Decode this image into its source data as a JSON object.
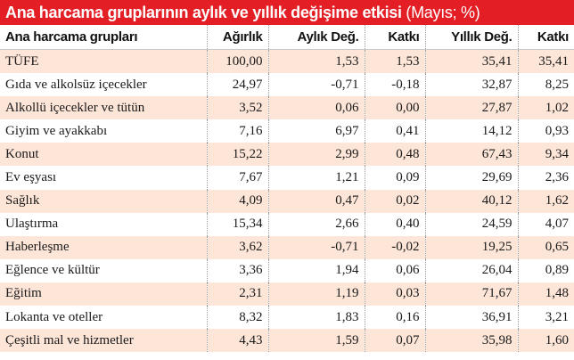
{
  "title": {
    "main": "Ana harcama gruplarının aylık ve yıllık değişime etkisi",
    "unit": "(Mayıs; %)"
  },
  "table": {
    "headers": [
      "Ana harcama grupları",
      "Ağırlık",
      "Aylık Değ.",
      "Katkı",
      "Yıllık Değ.",
      "Katkı"
    ],
    "rows": [
      [
        "TÜFE",
        "100,00",
        "1,53",
        "1,53",
        "35,41",
        "35,41"
      ],
      [
        "Gıda ve alkolsüz içecekler",
        "24,97",
        "-0,71",
        "-0,18",
        "32,87",
        "8,25"
      ],
      [
        "Alkollü içecekler ve tütün",
        "3,52",
        "0,06",
        "0,00",
        "27,87",
        "1,02"
      ],
      [
        "Giyim ve ayakkabı",
        "7,16",
        "6,97",
        "0,41",
        "14,12",
        "0,93"
      ],
      [
        "Konut",
        "15,22",
        "2,99",
        "0,48",
        "67,43",
        "9,34"
      ],
      [
        "Ev eşyası",
        "7,67",
        "1,21",
        "0,09",
        "29,69",
        "2,36"
      ],
      [
        "Sağlık",
        "4,09",
        "0,47",
        "0,02",
        "40,12",
        "1,62"
      ],
      [
        "Ulaştırma",
        "15,34",
        "2,66",
        "0,40",
        "24,59",
        "4,07"
      ],
      [
        "Haberleşme",
        "3,62",
        "-0,71",
        "-0,02",
        "19,25",
        "0,65"
      ],
      [
        "Eğlence ve kültür",
        "3,36",
        "1,94",
        "0,06",
        "26,04",
        "0,89"
      ],
      [
        "Eğitim",
        "2,31",
        "1,19",
        "0,03",
        "71,67",
        "1,48"
      ],
      [
        "Lokanta ve oteller",
        "8,32",
        "1,83",
        "0,16",
        "36,91",
        "3,21"
      ],
      [
        "Çeşitli mal ve hizmetler",
        "4,43",
        "1,59",
        "0,07",
        "35,98",
        "1,60"
      ]
    ]
  },
  "colors": {
    "title_background": "#e31e24",
    "row_stripe": "#fde5d8"
  }
}
